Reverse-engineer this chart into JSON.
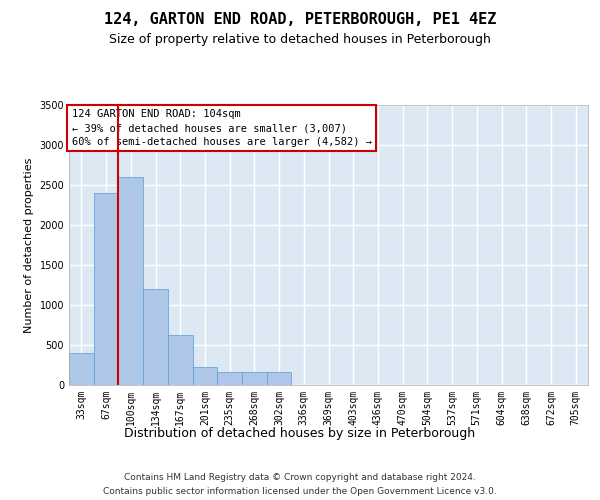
{
  "title": "124, GARTON END ROAD, PETERBOROUGH, PE1 4EZ",
  "subtitle": "Size of property relative to detached houses in Peterborough",
  "xlabel": "Distribution of detached houses by size in Peterborough",
  "ylabel": "Number of detached properties",
  "footer_line1": "Contains HM Land Registry data © Crown copyright and database right 2024.",
  "footer_line2": "Contains public sector information licensed under the Open Government Licence v3.0.",
  "annotation_line1": "124 GARTON END ROAD: 104sqm",
  "annotation_line2": "← 39% of detached houses are smaller (3,007)",
  "annotation_line3": "60% of semi-detached houses are larger (4,582) →",
  "bar_color": "#aec6e8",
  "bar_edge_color": "#5b9bd5",
  "redline_color": "#cc0000",
  "background_color": "#dce9f5",
  "grid_color": "#ffffff",
  "categories": [
    "33sqm",
    "67sqm",
    "100sqm",
    "134sqm",
    "167sqm",
    "201sqm",
    "235sqm",
    "268sqm",
    "302sqm",
    "336sqm",
    "369sqm",
    "403sqm",
    "436sqm",
    "470sqm",
    "504sqm",
    "537sqm",
    "571sqm",
    "604sqm",
    "638sqm",
    "672sqm",
    "705sqm"
  ],
  "values": [
    400,
    2400,
    2600,
    1200,
    620,
    230,
    160,
    160,
    160,
    0,
    0,
    0,
    0,
    0,
    0,
    0,
    0,
    0,
    0,
    0,
    0
  ],
  "redline_x": 1.5,
  "ylim_max": 3500,
  "ytick_step": 500,
  "title_fontsize": 11,
  "subtitle_fontsize": 9,
  "ylabel_fontsize": 8,
  "xlabel_fontsize": 9,
  "tick_fontsize": 7,
  "annotation_fontsize": 7.5,
  "footer_fontsize": 6.5
}
